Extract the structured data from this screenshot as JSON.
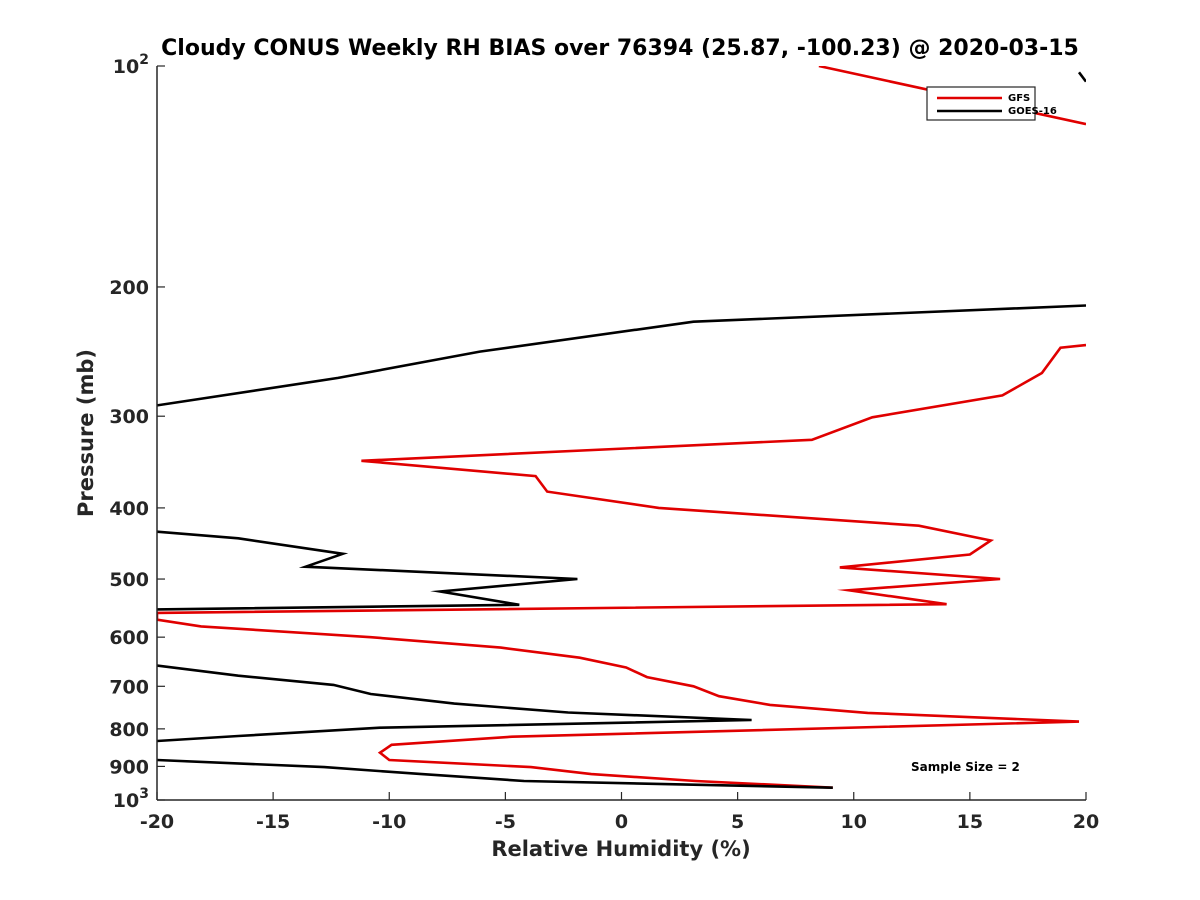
{
  "chart_data": {
    "type": "line",
    "title": "Cloudy CONUS Weekly RH BIAS over 76394 (25.87, -100.23) @ 2020-03-15",
    "xlabel": "Relative Humidity (%)",
    "ylabel": "Pressure (mb)",
    "xlim": [
      -20,
      20
    ],
    "ylim": [
      1000,
      100
    ],
    "yscale": "log",
    "y_reversed": true,
    "grid": false,
    "legend_position": "top-right",
    "x_ticks": [
      "-20",
      "-15",
      "-10",
      "-5",
      "0",
      "5",
      "10",
      "15",
      "20"
    ],
    "y_ticks": [
      {
        "value": 100,
        "base": "10",
        "exp": "2"
      },
      {
        "value": 200,
        "label": "200"
      },
      {
        "value": 300,
        "label": "300"
      },
      {
        "value": 400,
        "label": "400"
      },
      {
        "value": 500,
        "label": "500"
      },
      {
        "value": 600,
        "label": "600"
      },
      {
        "value": 700,
        "label": "700"
      },
      {
        "value": 800,
        "label": "800"
      },
      {
        "value": 900,
        "label": "900"
      },
      {
        "value": 1000,
        "base": "10",
        "exp": "3"
      }
    ],
    "annotation": "Sample Size = 2",
    "series": [
      {
        "name": "GFS",
        "color": "#e00000",
        "segments": [
          [
            [
              8.5,
              100
            ],
            [
              20,
              120
            ]
          ],
          [
            [
              20,
              240
            ],
            [
              18.9,
              242
            ],
            [
              18.1,
              262
            ],
            [
              16.4,
              281
            ],
            [
              10.8,
              301
            ],
            [
              8.2,
              323
            ],
            [
              -11.2,
              345
            ],
            [
              -3.7,
              362
            ],
            [
              -3.2,
              380
            ],
            [
              1.6,
              400
            ],
            [
              12.8,
              423
            ],
            [
              15.9,
              443
            ],
            [
              15.0,
              463
            ],
            [
              9.4,
              482
            ],
            [
              16.3,
              500
            ],
            [
              9.8,
              518
            ],
            [
              14.0,
              541
            ],
            [
              -20,
              556
            ],
            [
              -20,
              568
            ],
            [
              -18.1,
              580
            ],
            [
              -10.8,
              600
            ],
            [
              -5.2,
              620
            ],
            [
              -1.8,
              640
            ],
            [
              0.2,
              660
            ],
            [
              1.1,
              680
            ],
            [
              3.1,
              700
            ],
            [
              4.2,
              722
            ],
            [
              6.4,
              742
            ],
            [
              10.6,
              761
            ],
            [
              19.7,
              782
            ],
            [
              -4.7,
              820
            ],
            [
              -9.9,
              841
            ],
            [
              -10.4,
              862
            ],
            [
              -10.0,
              882
            ],
            [
              -3.9,
              902
            ],
            [
              -1.3,
              922
            ],
            [
              3.2,
              942
            ],
            [
              9.1,
              962
            ]
          ]
        ]
      },
      {
        "name": "GOES-16",
        "color": "#000000",
        "segments": [
          [
            [
              19.7,
              102
            ],
            [
              20,
              105
            ]
          ],
          [
            [
              -20,
              290
            ],
            [
              -12.2,
              266
            ],
            [
              -6.1,
              245
            ],
            [
              3.1,
              223
            ],
            [
              20,
              212
            ]
          ],
          [
            [
              -20,
              431
            ],
            [
              -16.5,
              440
            ],
            [
              -12.0,
              462
            ],
            [
              -13.6,
              481
            ],
            [
              -1.9,
              500
            ],
            [
              -7.8,
              520
            ],
            [
              -4.4,
              542
            ],
            [
              -20,
              550
            ]
          ],
          [
            [
              -20,
              656
            ],
            [
              -16.5,
              677
            ],
            [
              -12.4,
              697
            ],
            [
              -10.8,
              717
            ],
            [
              -7.2,
              739
            ],
            [
              -2.3,
              760
            ],
            [
              5.6,
              778
            ],
            [
              -10.4,
              797
            ],
            [
              -16.5,
              818
            ],
            [
              -20,
              831
            ]
          ],
          [
            [
              -20,
              882
            ],
            [
              -12.8,
              902
            ],
            [
              -8.6,
              922
            ],
            [
              -4.2,
              942
            ],
            [
              9.1,
              962
            ]
          ]
        ]
      }
    ]
  }
}
